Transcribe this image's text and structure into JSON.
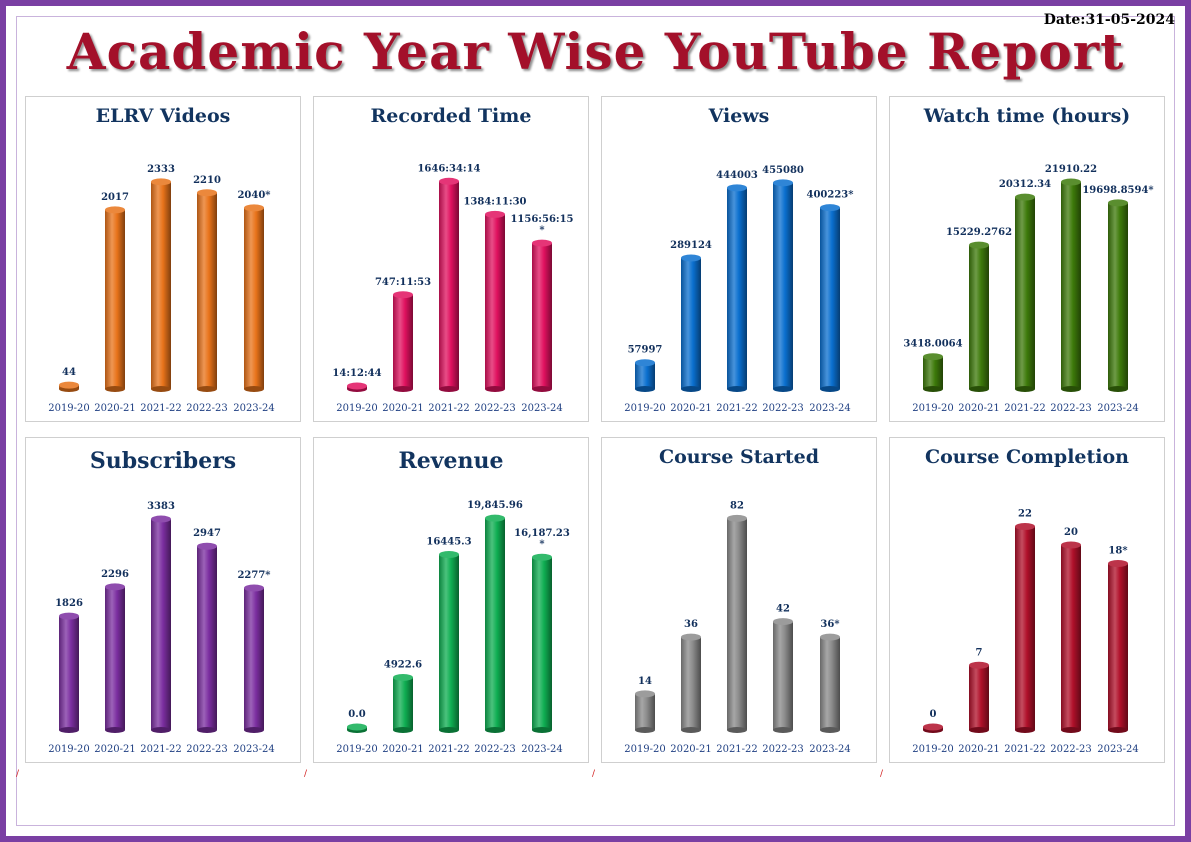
{
  "date_label": "Date:31-05-2024",
  "title": "Academic Year Wise YouTube Report",
  "chart_data": [
    {
      "type": "bar",
      "title": "ELRV Videos",
      "categories": [
        "2019-20",
        "2020-21",
        "2021-22",
        "2022-23",
        "2023-24"
      ],
      "values": [
        44,
        2017,
        2333,
        2210,
        2040
      ],
      "value_labels": [
        "44",
        "2017",
        "2333",
        "2210",
        "2040*"
      ],
      "color": "#e8731a",
      "ylim": [
        0,
        2500
      ]
    },
    {
      "type": "bar",
      "title": "Recorded Time",
      "categories": [
        "2019-20",
        "2020-21",
        "2021-22",
        "2022-23",
        "2023-24"
      ],
      "values": [
        14.2,
        747.2,
        1646.6,
        1384.2,
        1156.9
      ],
      "value_labels": [
        "14:12:44",
        "747:11:53",
        "1646:34:14",
        "1384:11:30",
        "1156:56:15\n*"
      ],
      "color": "#e0115f",
      "ylim": [
        0,
        1760
      ]
    },
    {
      "type": "bar",
      "title": "Views",
      "categories": [
        "2019-20",
        "2020-21",
        "2021-22",
        "2022-23",
        "2023-24"
      ],
      "values": [
        57997,
        289124,
        444003,
        455080,
        400223
      ],
      "value_labels": [
        "57997",
        "289124",
        "444003",
        "455080",
        "400223*"
      ],
      "color": "#0a6fcf",
      "ylim": [
        0,
        490000
      ]
    },
    {
      "type": "bar",
      "title": "Watch time (hours)",
      "categories": [
        "2019-20",
        "2020-21",
        "2021-22",
        "2022-23",
        "2023-24"
      ],
      "values": [
        3418.0064,
        15229.2762,
        20312.34,
        21910.22,
        19698.8594
      ],
      "value_labels": [
        "3418.0064",
        "15229.2762",
        "20312.34",
        "21910.22",
        "19698.8594*"
      ],
      "color": "#3d7a0a",
      "ylim": [
        0,
        23500
      ]
    },
    {
      "type": "bar",
      "title": "Subscribers",
      "categories": [
        "2019-20",
        "2020-21",
        "2021-22",
        "2022-23",
        "2023-24"
      ],
      "values": [
        1826,
        2296,
        3383,
        2947,
        2277
      ],
      "value_labels": [
        "1826",
        "2296",
        "3383",
        "2947",
        "2277*"
      ],
      "color": "#7b2ea0",
      "ylim": [
        0,
        3560
      ]
    },
    {
      "type": "bar",
      "title": "Revenue",
      "categories": [
        "2019-20",
        "2020-21",
        "2021-22",
        "2022-23",
        "2023-24"
      ],
      "values": [
        0.0,
        4922.6,
        16445.3,
        19845.96,
        16187.23
      ],
      "value_labels": [
        "0.0",
        "4922.6",
        "16445.3",
        "19,845.96",
        "16,187.23\n*"
      ],
      "color": "#0fae52",
      "ylim": [
        0,
        20800
      ]
    },
    {
      "type": "bar",
      "title": "Course Started",
      "categories": [
        "2019-20",
        "2020-21",
        "2021-22",
        "2022-23",
        "2023-24"
      ],
      "values": [
        14,
        36,
        82,
        42,
        36
      ],
      "value_labels": [
        "14",
        "36",
        "82",
        "42",
        "36*"
      ],
      "color": "#8a8a8a",
      "ylim": [
        0,
        86
      ]
    },
    {
      "type": "bar",
      "title": "Course Completion",
      "categories": [
        "2019-20",
        "2020-21",
        "2021-22",
        "2022-23",
        "2023-24"
      ],
      "values": [
        0,
        7,
        22,
        20,
        18
      ],
      "value_labels": [
        "0",
        "7",
        "22",
        "20",
        "18*"
      ],
      "color": "#b0102a",
      "ylim": [
        0,
        24
      ]
    }
  ]
}
